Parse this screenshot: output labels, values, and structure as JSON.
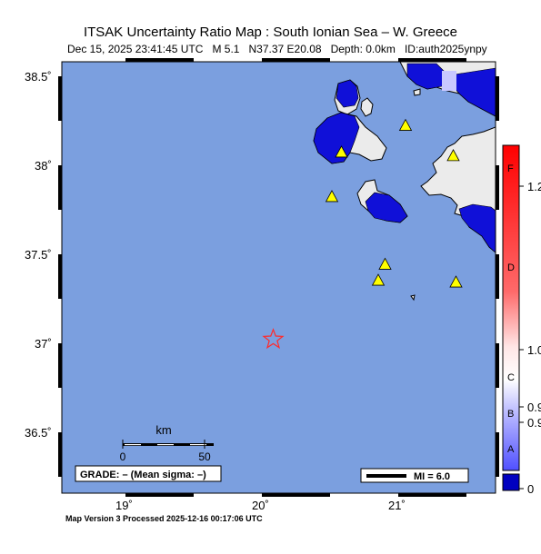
{
  "title": "ITSAK Uncertainty Ratio Map : South Ionian Sea – W. Greece",
  "subtitle": {
    "datetime": "Dec 15, 2025 23:41:45 UTC",
    "magnitude": "M 5.1",
    "location": "N37.37 E20.08",
    "depth": "Depth: 0.0km",
    "event_id": "ID:auth2025ynpy"
  },
  "map": {
    "lat_labels": [
      "38.5˚",
      "38˚",
      "37.5˚",
      "37˚",
      "36.5˚"
    ],
    "lon_labels": [
      "19˚",
      "20˚",
      "21˚"
    ],
    "epicenter": {
      "lat": 37.37,
      "lon": 20.08,
      "symbol": "star",
      "color": "#ff2a2a"
    },
    "stations": [
      {
        "lat": 38.42,
        "lon": 20.58
      },
      {
        "lat": 38.57,
        "lon": 21.05
      },
      {
        "lat": 38.4,
        "lon": 21.4
      },
      {
        "lat": 38.17,
        "lon": 20.51
      },
      {
        "lat": 37.79,
        "lon": 20.9
      },
      {
        "lat": 37.7,
        "lon": 20.85
      },
      {
        "lat": 37.69,
        "lon": 21.42
      }
    ],
    "colors": {
      "sea": "#7b9fdf",
      "land": "#ebebeb",
      "uncertainty_blue": "#1010d8",
      "station": "#ffff00",
      "station_outline": "#000000"
    }
  },
  "scale_bar": {
    "unit": "km",
    "tick_start": "0",
    "tick_end": "50"
  },
  "grade_box": {
    "text": "GRADE: – (Mean sigma: –)"
  },
  "mi_legend": {
    "text": "MI = 6.0"
  },
  "colorbar": {
    "grade_letters": [
      "F",
      "D",
      "C",
      "B",
      "A"
    ],
    "tick_labels": [
      "1.2",
      "1.0",
      "0.9",
      "0.9",
      "0"
    ],
    "top_color": "#ff0000",
    "bottom_color": "#0000c0"
  },
  "footer": "Map Version 3 Processed 2025-12-16 00:17:06 UTC"
}
